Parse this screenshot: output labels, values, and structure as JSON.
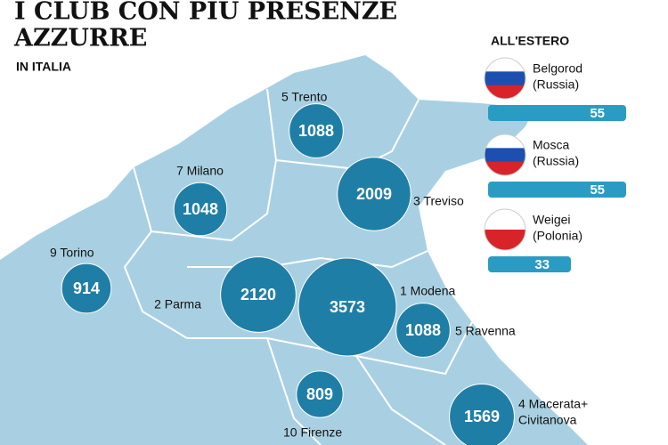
{
  "title": [
    "I CLUB CON PIÙ PRESENZE",
    "AZZURRE"
  ],
  "subtitle": "IN ITALIA",
  "abroad_title": "ALL'ESTERO",
  "clubs": [
    {
      "label": [
        "5 Trento"
      ],
      "value": 1088
    },
    {
      "label": [
        "7 Milano"
      ],
      "value": 1048
    },
    {
      "label": [
        "3 Treviso"
      ],
      "value": 2009
    },
    {
      "label": [
        "9 Torino"
      ],
      "value": 914
    },
    {
      "label": [
        "2 Parma"
      ],
      "value": 2120
    },
    {
      "label": [
        "1 Modena"
      ],
      "value": 3573
    },
    {
      "label": [
        "5 Ravenna"
      ],
      "value": 1088
    },
    {
      "label": [
        "10 Firenze"
      ],
      "value": 809
    },
    {
      "label": [
        "4 Macerata+",
        "Civitanova"
      ],
      "value": 1569
    }
  ],
  "abroad": [
    {
      "label": [
        "Belgorod",
        "(Russia)"
      ],
      "value": 55
    },
    {
      "label": [
        "Mosca",
        "(Russia)"
      ],
      "value": 55
    },
    {
      "label": [
        "Weigei",
        "(Polonia)"
      ],
      "value": 33
    }
  ],
  "bubble_color": "#1f7ea6",
  "bar_color": "#2a9cc4"
}
